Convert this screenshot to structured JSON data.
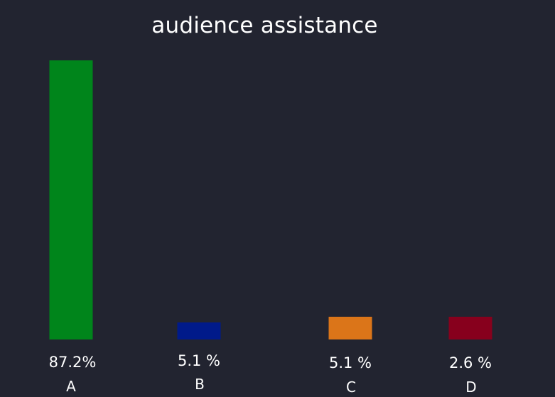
{
  "chart_data": {
    "type": "bar",
    "title": "audience assistance",
    "categories": [
      "A",
      "B",
      "C",
      "D"
    ],
    "values": [
      87.2,
      5.1,
      5.1,
      2.6
    ],
    "value_labels": [
      "87.2%",
      "5.1 %",
      "5.1 %",
      "2.6 %"
    ],
    "colors": [
      "#00851b",
      "#001a8a",
      "#db7519",
      "#87001d"
    ],
    "xlabel": "",
    "ylabel": "",
    "grid": false,
    "legend": "none"
  }
}
